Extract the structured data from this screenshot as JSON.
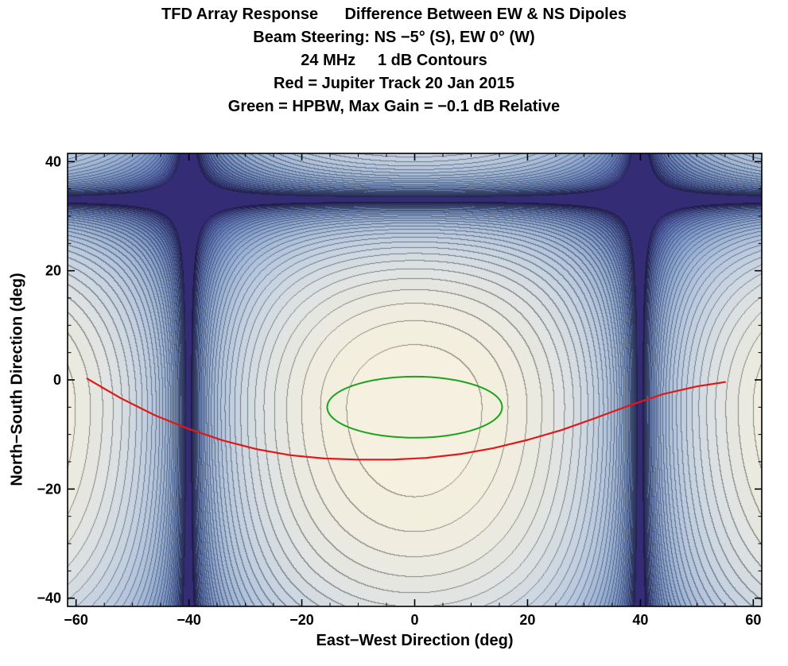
{
  "chart_data": {
    "type": "contour",
    "title_lines": [
      "TFD Array Response      Difference Between EW & NS Dipoles",
      "Beam Steering: NS −5° (S), EW 0° (W)",
      "24 MHz     1 dB Contours",
      "Red = Jupiter Track 20 Jan 2015",
      "Green = HPBW, Max Gain = −0.1 dB Relative"
    ],
    "xlabel": "East−West Direction (deg)",
    "ylabel": "North−South Direction (deg)",
    "xlim": [
      -61.5,
      61.5
    ],
    "ylim": [
      -41.5,
      41.5
    ],
    "x_major_ticks": [
      -60,
      -40,
      -20,
      0,
      20,
      40,
      60
    ],
    "y_major_ticks": [
      -40,
      -20,
      0,
      20,
      40
    ],
    "minor_tick_step": 5,
    "contour_interval_db": 1,
    "clamp_db": -35,
    "beam_center": {
      "x": 0,
      "y": -5
    },
    "pattern_nulls": {
      "x_deg": [
        -40,
        40
      ],
      "y_deg": [
        33
      ]
    },
    "field_model": {
      "x_null_deg": 40,
      "y_upper_null_offset_deg": 38,
      "y_lower_scale_deg": 55
    },
    "colormap": [
      [
        0,
        [
          247,
          241,
          224
        ]
      ],
      [
        -2,
        [
          242,
          238,
          223
        ]
      ],
      [
        -4,
        [
          233,
          232,
          224
        ]
      ],
      [
        -6,
        [
          222,
          226,
          226
        ]
      ],
      [
        -8,
        [
          209,
          218,
          226
        ]
      ],
      [
        -10,
        [
          196,
          209,
          225
        ]
      ],
      [
        -13,
        [
          178,
          196,
          221
        ]
      ],
      [
        -16,
        [
          158,
          181,
          215
        ]
      ],
      [
        -20,
        [
          132,
          158,
          205
        ]
      ],
      [
        -24,
        [
          108,
          133,
          192
        ]
      ],
      [
        -28,
        [
          88,
          106,
          175
        ]
      ],
      [
        -31,
        [
          72,
          82,
          155
        ]
      ],
      [
        -33,
        [
          60,
          60,
          135
        ]
      ],
      [
        -35,
        [
          50,
          40,
          112
        ]
      ]
    ],
    "contour_line_darken": 0.58,
    "frame_color": "#000000",
    "jupiter_track": {
      "label": "Jupiter Track 20 Jan 2015",
      "color": "#e01818",
      "points": [
        [
          -58,
          0.2
        ],
        [
          -52,
          -3.4
        ],
        [
          -46,
          -6.5
        ],
        [
          -40,
          -9.0
        ],
        [
          -34,
          -11.1
        ],
        [
          -28,
          -12.7
        ],
        [
          -22,
          -13.8
        ],
        [
          -16,
          -14.4
        ],
        [
          -10,
          -14.6
        ],
        [
          -4,
          -14.6
        ],
        [
          2,
          -14.3
        ],
        [
          8,
          -13.6
        ],
        [
          14,
          -12.5
        ],
        [
          20,
          -11.0
        ],
        [
          26,
          -9.2
        ],
        [
          32,
          -7.0
        ],
        [
          38,
          -4.7
        ],
        [
          44,
          -2.6
        ],
        [
          50,
          -1.2
        ],
        [
          55,
          -0.4
        ]
      ]
    },
    "hpbw_ellipse": {
      "label": "HPBW",
      "color": "#1da21d",
      "cx": 0,
      "cy": -5,
      "rx": 15.5,
      "ry": 5.6
    }
  }
}
